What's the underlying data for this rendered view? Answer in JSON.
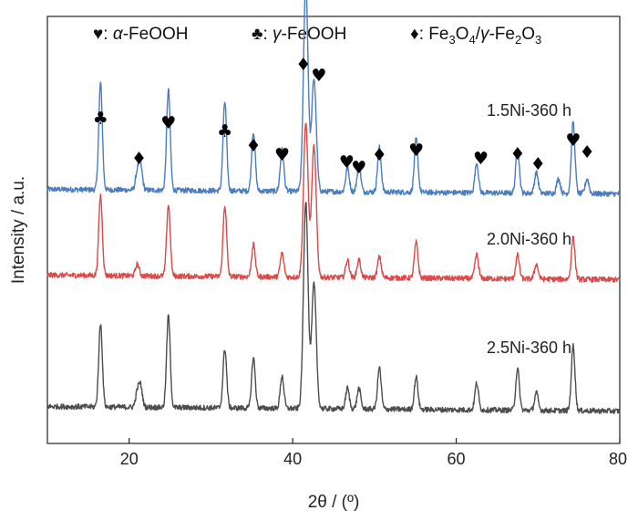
{
  "chart_data": {
    "type": "line",
    "xlabel": "2θ / (º)",
    "ylabel": "Intensity / a.u.",
    "xlim": [
      10,
      80
    ],
    "x_ticks": [
      20,
      40,
      60,
      80
    ],
    "y_ticks_shown": false,
    "grid": false,
    "legend": {
      "placement": "top",
      "entries": [
        {
          "symbol": "♥",
          "separator": ": ",
          "text": "α-FeOOH",
          "phase": "alpha-FeOOH"
        },
        {
          "symbol": "♣",
          "separator": ": ",
          "text": "γ-FeOOH",
          "phase": "gamma-FeOOH"
        },
        {
          "symbol": "♦",
          "separator": ": ",
          "text": "Fe3O4/γ-Fe2O3",
          "phase": "magnetite-maghemite"
        }
      ]
    },
    "series": [
      {
        "name": "1.5Ni-360 h",
        "color": "#4a7cc0",
        "peaks": [
          {
            "x": 16.5,
            "h": 0.36
          },
          {
            "x": 21.0,
            "h": 0.06
          },
          {
            "x": 21.4,
            "h": 0.08
          },
          {
            "x": 24.8,
            "h": 0.34
          },
          {
            "x": 31.7,
            "h": 0.3
          },
          {
            "x": 35.2,
            "h": 0.2
          },
          {
            "x": 38.7,
            "h": 0.14
          },
          {
            "x": 41.6,
            "h": 0.7
          },
          {
            "x": 42.6,
            "h": 0.38
          },
          {
            "x": 46.7,
            "h": 0.08
          },
          {
            "x": 48.1,
            "h": 0.09
          },
          {
            "x": 50.6,
            "h": 0.15
          },
          {
            "x": 55.1,
            "h": 0.18
          },
          {
            "x": 62.5,
            "h": 0.1
          },
          {
            "x": 67.5,
            "h": 0.15
          },
          {
            "x": 69.8,
            "h": 0.07
          },
          {
            "x": 72.5,
            "h": 0.05
          },
          {
            "x": 74.3,
            "h": 0.24
          },
          {
            "x": 76.0,
            "h": 0.05
          }
        ]
      },
      {
        "name": "2.0Ni-360 h",
        "color": "#d94a48",
        "peaks": [
          {
            "x": 16.5,
            "h": 0.27
          },
          {
            "x": 21.0,
            "h": 0.04
          },
          {
            "x": 24.8,
            "h": 0.24
          },
          {
            "x": 31.7,
            "h": 0.24
          },
          {
            "x": 35.2,
            "h": 0.11
          },
          {
            "x": 38.7,
            "h": 0.08
          },
          {
            "x": 41.6,
            "h": 0.52
          },
          {
            "x": 42.6,
            "h": 0.44
          },
          {
            "x": 46.7,
            "h": 0.06
          },
          {
            "x": 48.1,
            "h": 0.06
          },
          {
            "x": 50.6,
            "h": 0.07
          },
          {
            "x": 55.1,
            "h": 0.12
          },
          {
            "x": 62.5,
            "h": 0.08
          },
          {
            "x": 67.5,
            "h": 0.08
          },
          {
            "x": 69.8,
            "h": 0.05
          },
          {
            "x": 74.3,
            "h": 0.14
          }
        ]
      },
      {
        "name": "2.5Ni-360 h",
        "color": "#4d4d4d",
        "peaks": [
          {
            "x": 16.5,
            "h": 0.28
          },
          {
            "x": 21.0,
            "h": 0.05
          },
          {
            "x": 21.4,
            "h": 0.07
          },
          {
            "x": 24.8,
            "h": 0.31
          },
          {
            "x": 31.7,
            "h": 0.2
          },
          {
            "x": 35.2,
            "h": 0.17
          },
          {
            "x": 38.7,
            "h": 0.11
          },
          {
            "x": 41.6,
            "h": 0.7
          },
          {
            "x": 42.6,
            "h": 0.42
          },
          {
            "x": 46.7,
            "h": 0.07
          },
          {
            "x": 48.1,
            "h": 0.07
          },
          {
            "x": 50.6,
            "h": 0.14
          },
          {
            "x": 55.1,
            "h": 0.11
          },
          {
            "x": 62.5,
            "h": 0.09
          },
          {
            "x": 67.5,
            "h": 0.14
          },
          {
            "x": 69.8,
            "h": 0.06
          },
          {
            "x": 74.3,
            "h": 0.22
          }
        ]
      }
    ],
    "peak_markers": [
      {
        "x": 16.5,
        "symbol": "♣"
      },
      {
        "x": 21.2,
        "symbol": "♦"
      },
      {
        "x": 24.8,
        "symbol": "♥"
      },
      {
        "x": 31.7,
        "symbol": "♣"
      },
      {
        "x": 35.2,
        "symbol": "♦"
      },
      {
        "x": 38.7,
        "symbol": "♥"
      },
      {
        "x": 41.3,
        "symbol": "♦"
      },
      {
        "x": 43.2,
        "symbol": "♥"
      },
      {
        "x": 46.6,
        "symbol": "♥"
      },
      {
        "x": 48.1,
        "symbol": "♥"
      },
      {
        "x": 50.6,
        "symbol": "♦"
      },
      {
        "x": 55.1,
        "symbol": "♥"
      },
      {
        "x": 63.0,
        "symbol": "♥"
      },
      {
        "x": 67.5,
        "symbol": "♦"
      },
      {
        "x": 70.0,
        "symbol": "♦"
      },
      {
        "x": 74.3,
        "symbol": "♥"
      },
      {
        "x": 76.0,
        "symbol": "♦"
      }
    ]
  }
}
